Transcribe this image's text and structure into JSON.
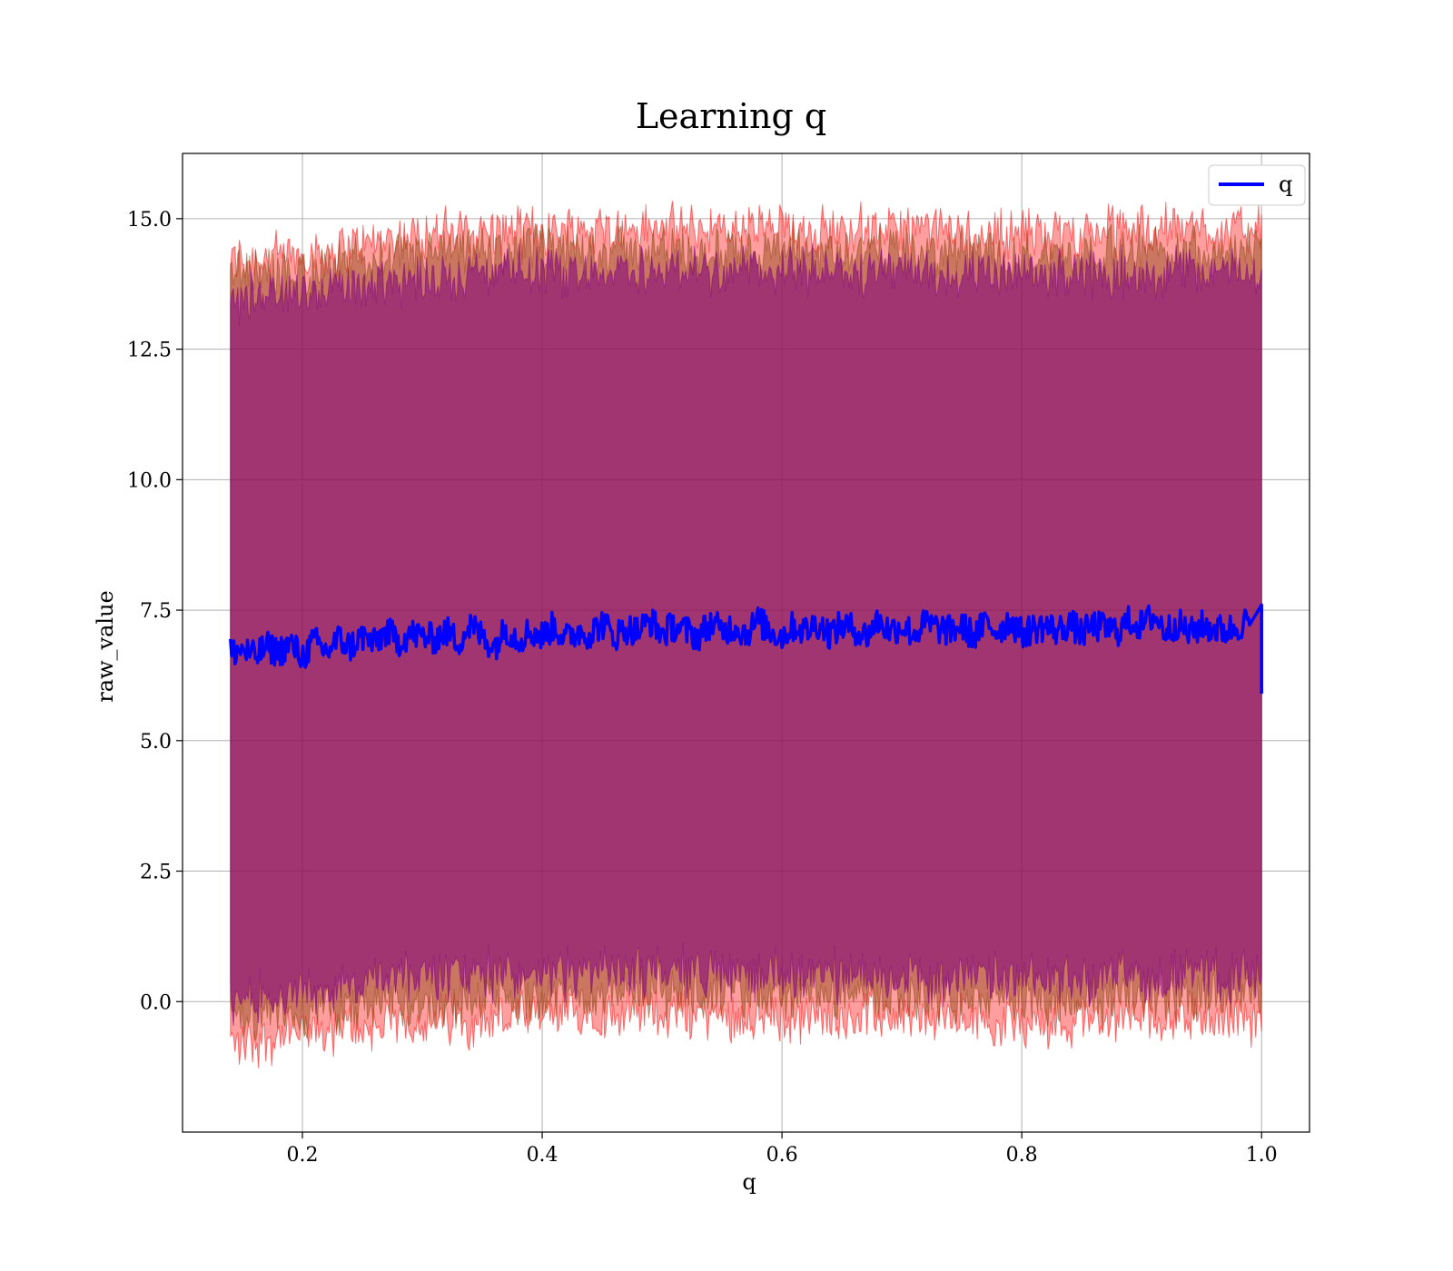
{
  "chart_data": {
    "type": "line",
    "title": "Learning q",
    "xlabel": "q",
    "ylabel": "raw_value",
    "xlim": [
      0.1,
      1.04
    ],
    "ylim": [
      -2.5,
      16.25
    ],
    "xticks": [
      "0.2",
      "0.4",
      "0.6",
      "0.8",
      "1.0"
    ],
    "xtick_values": [
      0.2,
      0.4,
      0.6,
      0.8,
      1.0
    ],
    "yticks": [
      "0.0",
      "2.5",
      "5.0",
      "7.5",
      "10.0",
      "12.5",
      "15.0"
    ],
    "ytick_values": [
      0.0,
      2.5,
      5.0,
      7.5,
      10.0,
      12.5,
      15.0
    ],
    "grid": true,
    "legend_position": "top-right",
    "colors": {
      "line": "#0000ff",
      "band_outer": "#ff0000",
      "band_inner": "#8b4513",
      "band_core": "#800080",
      "fill": "#a07078"
    },
    "series": [
      {
        "name": "q",
        "x": [
          0.14,
          0.15,
          0.16,
          0.17,
          0.18,
          0.19,
          0.2,
          0.21,
          0.22,
          0.23,
          0.24,
          0.25,
          0.26,
          0.27,
          0.28,
          0.29,
          0.3,
          0.31,
          0.32,
          0.33,
          0.34,
          0.35,
          0.36,
          0.37,
          0.38,
          0.39,
          0.4,
          0.41,
          0.42,
          0.43,
          0.44,
          0.45,
          0.46,
          0.47,
          0.48,
          0.49,
          0.5,
          0.51,
          0.52,
          0.53,
          0.54,
          0.55,
          0.56,
          0.57,
          0.58,
          0.59,
          0.6,
          0.61,
          0.62,
          0.63,
          0.64,
          0.65,
          0.66,
          0.67,
          0.68,
          0.69,
          0.7,
          0.71,
          0.72,
          0.73,
          0.74,
          0.75,
          0.76,
          0.77,
          0.78,
          0.79,
          0.8,
          0.81,
          0.82,
          0.83,
          0.84,
          0.85,
          0.86,
          0.87,
          0.88,
          0.89,
          0.9,
          0.91,
          0.92,
          0.93,
          0.94,
          0.95,
          0.96,
          0.97,
          0.98,
          0.99,
          1.0
        ],
        "values": [
          6.7,
          6.75,
          6.6,
          6.8,
          6.7,
          6.85,
          6.6,
          6.9,
          6.7,
          6.95,
          6.8,
          7.0,
          6.85,
          7.1,
          6.9,
          7.05,
          7.0,
          6.95,
          7.1,
          6.9,
          7.2,
          7.0,
          6.8,
          7.15,
          6.95,
          7.1,
          7.0,
          7.2,
          6.95,
          7.1,
          7.05,
          7.25,
          7.0,
          7.15,
          7.1,
          7.3,
          7.05,
          7.2,
          7.1,
          7.0,
          7.25,
          7.1,
          7.2,
          7.05,
          7.3,
          7.1,
          7.0,
          7.2,
          7.1,
          7.25,
          7.05,
          7.2,
          7.15,
          7.0,
          7.3,
          7.1,
          7.2,
          7.05,
          7.25,
          7.15,
          7.1,
          7.2,
          7.0,
          7.25,
          7.1,
          7.3,
          7.05,
          7.15,
          7.2,
          7.1,
          7.25,
          7.05,
          7.2,
          7.15,
          7.1,
          7.3,
          7.2,
          7.4,
          7.1,
          7.25,
          7.05,
          7.2,
          7.15,
          7.1,
          7.2,
          7.3,
          5.9
        ]
      }
    ],
    "bands": [
      {
        "x": [
          0.14,
          0.2,
          0.3,
          0.4,
          0.5,
          0.6,
          0.7,
          0.8,
          0.9,
          1.0
        ],
        "upper": [
          14.2,
          14.3,
          14.7,
          14.8,
          14.8,
          14.8,
          14.8,
          14.7,
          14.8,
          14.8
        ],
        "lower": [
          -0.8,
          -0.6,
          -0.4,
          -0.3,
          -0.2,
          -0.3,
          -0.3,
          -0.4,
          -0.3,
          -0.3
        ]
      },
      {
        "x": [
          0.14,
          0.2,
          0.3,
          0.4,
          0.5,
          0.6,
          0.7,
          0.8,
          0.9,
          1.0
        ],
        "upper": [
          13.9,
          14.0,
          14.3,
          14.4,
          14.4,
          14.4,
          14.4,
          14.3,
          14.4,
          14.4
        ],
        "lower": [
          -0.4,
          -0.2,
          0.0,
          0.1,
          0.2,
          0.1,
          0.1,
          0.0,
          0.1,
          0.1
        ]
      },
      {
        "x": [
          0.14,
          0.2,
          0.3,
          0.4,
          0.5,
          0.6,
          0.7,
          0.8,
          0.9,
          1.0
        ],
        "upper": [
          13.4,
          13.6,
          13.9,
          14.0,
          14.0,
          14.0,
          14.0,
          13.9,
          14.0,
          14.0
        ],
        "lower": [
          0.1,
          0.2,
          0.5,
          0.5,
          0.6,
          0.5,
          0.5,
          0.4,
          0.5,
          0.5
        ]
      }
    ]
  }
}
